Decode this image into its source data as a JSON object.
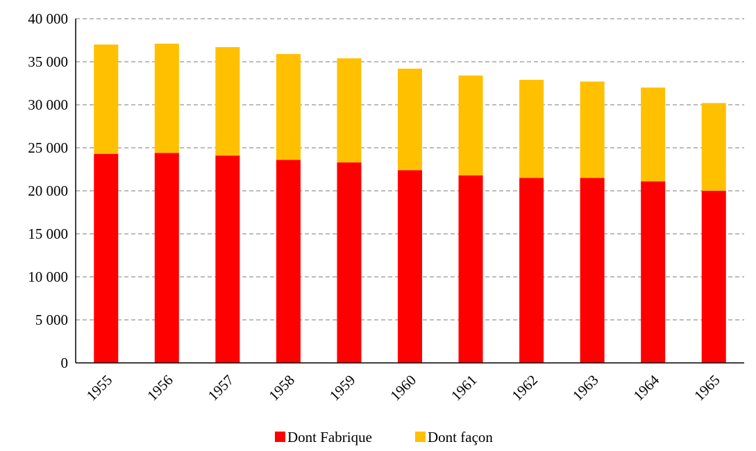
{
  "chart_data": {
    "type": "bar",
    "stacked": true,
    "categories": [
      "1955",
      "1956",
      "1957",
      "1958",
      "1959",
      "1960",
      "1961",
      "1962",
      "1963",
      "1964",
      "1965"
    ],
    "series": [
      {
        "name": "Dont Fabrique",
        "color": "#ff0000",
        "values": [
          24300,
          24400,
          24100,
          23600,
          23300,
          22400,
          21800,
          21500,
          21500,
          21100,
          20000
        ]
      },
      {
        "name": "Dont façon",
        "color": "#ffc000",
        "values": [
          12700,
          12700,
          12600,
          12300,
          12100,
          11800,
          11600,
          11400,
          11200,
          10900,
          10200
        ]
      }
    ],
    "ylim": [
      0,
      40000
    ],
    "yticks": [
      0,
      5000,
      10000,
      15000,
      20000,
      25000,
      30000,
      35000,
      40000
    ],
    "ytick_labels": [
      "0",
      "5 000",
      "10 000",
      "15 000",
      "20 000",
      "25 000",
      "30 000",
      "35 000",
      "40 000"
    ],
    "grid": true,
    "legend_position": "bottom"
  }
}
